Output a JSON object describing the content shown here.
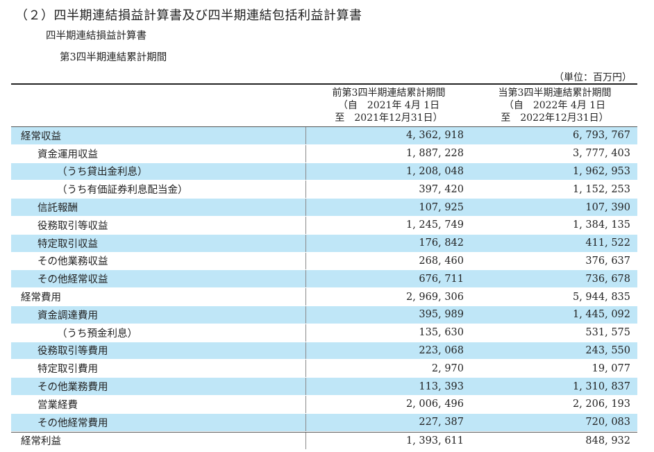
{
  "title": "（２）四半期連結損益計算書及び四半期連結包括利益計算書",
  "subtitle1": "四半期連結損益計算書",
  "subtitle2": "第3四半期連結累計期間",
  "unit": "（単位：百万円）",
  "columns": [
    {
      "line1": "前第3四半期連結累計期間",
      "line2": "（自　2021年 4月 1日",
      "line3": "至　2021年12月31日）"
    },
    {
      "line1": "当第3四半期連結累計期間",
      "line2": "（自　2022年 4月 1日",
      "line3": "至　2022年12月31日）"
    }
  ],
  "rows": [
    {
      "label": "経常収益",
      "v1": "4, 362, 918",
      "v2": "6, 793, 767"
    },
    {
      "label": "資金運用収益",
      "v1": "1, 887, 228",
      "v2": "3, 777, 403"
    },
    {
      "label": "（うち貸出金利息）",
      "v1": "1, 208, 048",
      "v2": "1, 962, 953"
    },
    {
      "label": "（うち有価証券利息配当金）",
      "v1": "397, 420",
      "v2": "1, 152, 253"
    },
    {
      "label": "信託報酬",
      "v1": "107, 925",
      "v2": "107, 390"
    },
    {
      "label": "役務取引等収益",
      "v1": "1, 245, 749",
      "v2": "1, 384, 135"
    },
    {
      "label": "特定取引収益",
      "v1": "176, 842",
      "v2": "411, 522"
    },
    {
      "label": "その他業務収益",
      "v1": "268, 460",
      "v2": "376, 637"
    },
    {
      "label": "その他経常収益",
      "v1": "676, 711",
      "v2": "736, 678"
    },
    {
      "label": "経常費用",
      "v1": "2, 969, 306",
      "v2": "5, 944, 835"
    },
    {
      "label": "資金調達費用",
      "v1": "395, 989",
      "v2": "1, 445, 092"
    },
    {
      "label": "（うち預金利息）",
      "v1": "135, 630",
      "v2": "531, 575"
    },
    {
      "label": "役務取引等費用",
      "v1": "223, 068",
      "v2": "243, 550"
    },
    {
      "label": "特定取引費用",
      "v1": "2, 970",
      "v2": "19, 077"
    },
    {
      "label": "その他業務費用",
      "v1": "113, 393",
      "v2": "1, 310, 837"
    },
    {
      "label": "営業経費",
      "v1": "2, 006, 496",
      "v2": "2, 206, 193"
    },
    {
      "label": "その他経常費用",
      "v1": "227, 387",
      "v2": "720, 083"
    },
    {
      "label": "経常利益",
      "v1": "1, 393, 611",
      "v2": "848, 932"
    }
  ]
}
